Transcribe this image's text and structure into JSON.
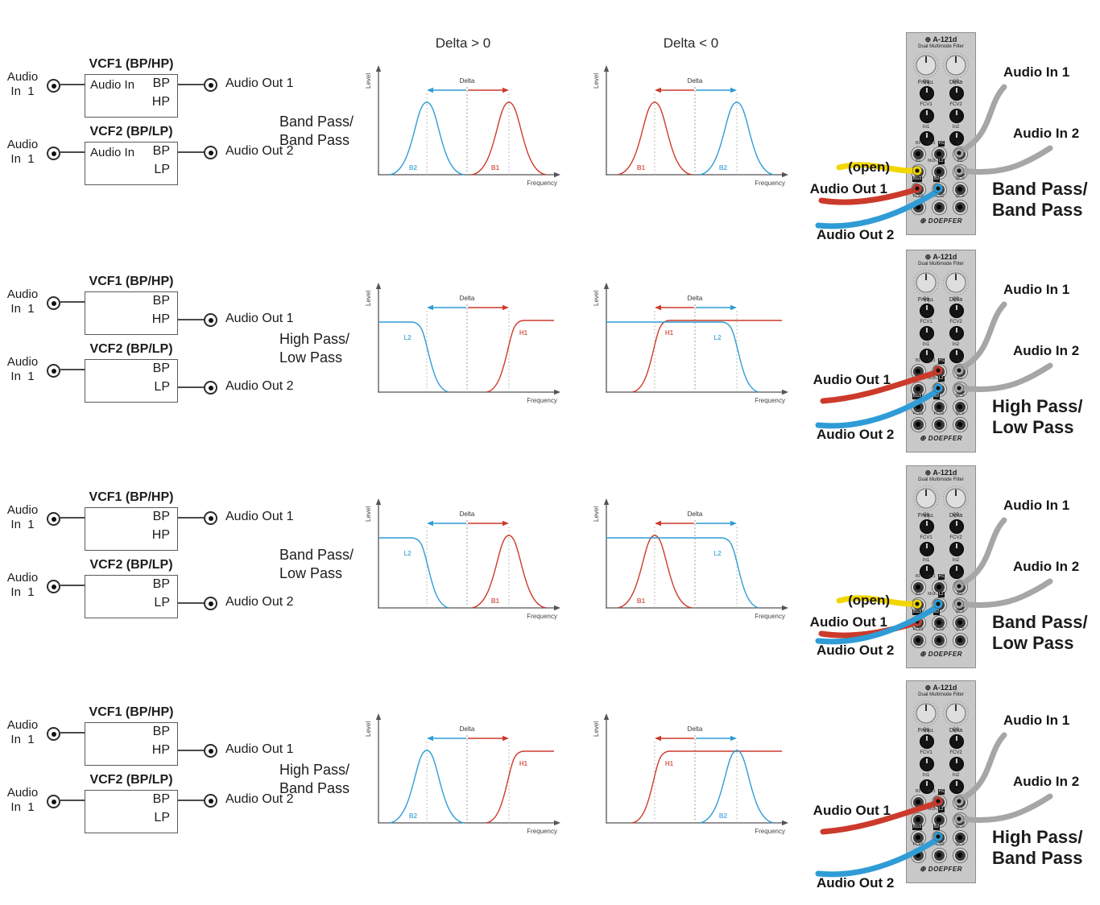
{
  "titles": {
    "delta_pos": "Delta > 0",
    "delta_neg": "Delta < 0"
  },
  "graph_labels": {
    "ylabel": "Level",
    "xlabel": "Frequency",
    "delta": "Delta"
  },
  "colors": {
    "red": "#cc3a2b",
    "blue": "#2f9cd6",
    "yellow": "#f2d600",
    "gray": "#a6a6a6",
    "axis": "#555555",
    "dotted": "#9a9a9a",
    "guide": "#b9b9b9"
  },
  "module": {
    "model": "A-121d",
    "title": "Dual Multimode Filter",
    "brand": "DOEPFER",
    "logo_glyph": "⊕",
    "knob1": "Frequ.",
    "knob2": "Delta",
    "small_knobs": [
      "Q1",
      "Q2",
      "FCV1",
      "FCV2",
      "In1",
      "In2"
    ],
    "jacks": [
      [
        {
          "label": "B1"
        },
        {
          "label": "Mx1",
          "badge": "H1"
        },
        {
          "label": "In1"
        }
      ],
      [
        {
          "label": "B2"
        },
        {
          "label": "Mx2",
          "badge": "L2"
        },
        {
          "label": "In2"
        }
      ],
      [
        {
          "badge": "B1/2"
        },
        {
          "badge": "B2"
        },
        {
          "label": "QCV"
        }
      ],
      [
        {
          "label": "FCV1"
        },
        {
          "label": "FCV2"
        },
        {
          "label": "QCV"
        }
      ]
    ]
  },
  "rows": [
    {
      "diagram": {
        "in1_line1": "Audio",
        "in1_line2": "In  1",
        "in2_line1": "Audio",
        "in2_line2": "In  1",
        "vcf1": {
          "title": "VCF1 (BP/HP)",
          "audio_in": "Audio In",
          "f1": "BP",
          "f2": "HP",
          "out_from": "top",
          "out": "Audio Out 1"
        },
        "vcf2": {
          "title": "VCF2 (BP/LP)",
          "audio_in": "Audio In",
          "f1": "BP",
          "f2": "LP",
          "out_from": "top",
          "out": "Audio Out 2"
        },
        "mode1": "Band Pass/",
        "mode2": "Band Pass"
      },
      "graphs": [
        {
          "curves": [
            {
              "shape": "bandpass",
              "side": "left",
              "color": "blue",
              "label": "B2"
            },
            {
              "shape": "bandpass",
              "side": "right",
              "color": "red",
              "label": "B1"
            }
          ]
        },
        {
          "curves": [
            {
              "shape": "bandpass",
              "side": "left",
              "color": "red",
              "label": "B1"
            },
            {
              "shape": "bandpass",
              "side": "right",
              "color": "blue",
              "label": "B2"
            }
          ]
        }
      ],
      "patch": {
        "mode1": "Band Pass/",
        "mode2": "Band Pass",
        "cables": [
          {
            "color": "yellow",
            "label": "(open)",
            "col": 0,
            "row": 1
          },
          {
            "color": "red",
            "label": "Audio Out 1",
            "col": 0,
            "row": 2
          },
          {
            "color": "blue",
            "label": "Audio Out 2",
            "col": 1,
            "row": 2
          },
          {
            "color": "gray",
            "label": "Audio In 1",
            "col": 2,
            "row": 0
          },
          {
            "color": "gray",
            "label": "Audio In 2",
            "col": 2,
            "row": 1
          }
        ]
      }
    },
    {
      "diagram": {
        "in1_line1": "Audio",
        "in1_line2": "In  1",
        "in2_line1": "Audio",
        "in2_line2": "In  1",
        "vcf1": {
          "title": "VCF1 (BP/HP)",
          "audio_in": "",
          "f1": "BP",
          "f2": "HP",
          "out_from": "bottom",
          "out": "Audio Out 1"
        },
        "vcf2": {
          "title": "VCF2 (BP/LP)",
          "audio_in": "",
          "f1": "BP",
          "f2": "LP",
          "out_from": "bottom",
          "out": "Audio Out 2"
        },
        "mode1": "High Pass/",
        "mode2": "Low Pass"
      },
      "graphs": [
        {
          "curves": [
            {
              "shape": "lowpass",
              "side": "left",
              "color": "blue",
              "label": "L2"
            },
            {
              "shape": "highpass",
              "side": "right",
              "color": "red",
              "label": "H1"
            }
          ]
        },
        {
          "curves": [
            {
              "shape": "highpass",
              "side": "left",
              "color": "red",
              "label": "H1"
            },
            {
              "shape": "lowpass",
              "side": "right",
              "color": "blue",
              "label": "L2"
            }
          ]
        }
      ],
      "patch": {
        "mode1": "High Pass/",
        "mode2": "Low Pass",
        "cables": [
          {
            "color": "red",
            "label": "Audio Out 1",
            "col": 1,
            "row": 0
          },
          {
            "color": "blue",
            "label": "Audio Out 2",
            "col": 1,
            "row": 1
          },
          {
            "color": "gray",
            "label": "Audio In 1",
            "col": 2,
            "row": 0
          },
          {
            "color": "gray",
            "label": "Audio In 2",
            "col": 2,
            "row": 1
          }
        ]
      }
    },
    {
      "diagram": {
        "in1_line1": "Audio",
        "in1_line2": "In  1",
        "in2_line1": "Audio",
        "in2_line2": "In  1",
        "vcf1": {
          "title": "VCF1 (BP/HP)",
          "audio_in": "",
          "f1": "BP",
          "f2": "HP",
          "out_from": "top",
          "out": "Audio Out 1"
        },
        "vcf2": {
          "title": "VCF2 (BP/LP)",
          "audio_in": "",
          "f1": "BP",
          "f2": "LP",
          "out_from": "bottom",
          "out": "Audio Out 2"
        },
        "mode1": "Band Pass/",
        "mode2": "Low Pass"
      },
      "graphs": [
        {
          "curves": [
            {
              "shape": "lowpass",
              "side": "left",
              "color": "blue",
              "label": "L2"
            },
            {
              "shape": "bandpass",
              "side": "right",
              "color": "red",
              "label": "B1"
            }
          ]
        },
        {
          "curves": [
            {
              "shape": "bandpass",
              "side": "left",
              "color": "red",
              "label": "B1"
            },
            {
              "shape": "lowpass",
              "side": "right",
              "color": "blue",
              "label": "L2"
            }
          ]
        }
      ],
      "patch": {
        "mode1": "Band Pass/",
        "mode2": "Low Pass",
        "cables": [
          {
            "color": "yellow",
            "label": "(open)",
            "col": 0,
            "row": 1
          },
          {
            "color": "red",
            "label": "Audio Out 1",
            "col": 0,
            "row": 2
          },
          {
            "color": "blue",
            "label": "Audio Out 2",
            "col": 1,
            "row": 1
          },
          {
            "color": "gray",
            "label": "Audio In 1",
            "col": 2,
            "row": 0
          },
          {
            "color": "gray",
            "label": "Audio In 2",
            "col": 2,
            "row": 1
          }
        ]
      }
    },
    {
      "diagram": {
        "in1_line1": "Audio",
        "in1_line2": "In  1",
        "in2_line1": "Audio",
        "in2_line2": "In  1",
        "vcf1": {
          "title": "VCF1 (BP/HP)",
          "audio_in": "",
          "f1": "BP",
          "f2": "HP",
          "out_from": "bottom",
          "out": "Audio Out 1"
        },
        "vcf2": {
          "title": "VCF2 (BP/LP)",
          "audio_in": "",
          "f1": "BP",
          "f2": "LP",
          "out_from": "top",
          "out": "Audio Out 2"
        },
        "mode1": "High Pass/",
        "mode2": "Band Pass"
      },
      "graphs": [
        {
          "curves": [
            {
              "shape": "bandpass",
              "side": "left",
              "color": "blue",
              "label": "B2"
            },
            {
              "shape": "highpass",
              "side": "right",
              "color": "red",
              "label": "H1"
            }
          ]
        },
        {
          "curves": [
            {
              "shape": "highpass",
              "side": "left",
              "color": "red",
              "label": "H1"
            },
            {
              "shape": "bandpass",
              "side": "right",
              "color": "blue",
              "label": "B2"
            }
          ]
        }
      ],
      "patch": {
        "mode1": "High Pass/",
        "mode2": "Band Pass",
        "cables": [
          {
            "color": "red",
            "label": "Audio Out 1",
            "col": 1,
            "row": 0
          },
          {
            "color": "blue",
            "label": "Audio Out 2",
            "col": 1,
            "row": 2
          },
          {
            "color": "gray",
            "label": "Audio In 1",
            "col": 2,
            "row": 0
          },
          {
            "color": "gray",
            "label": "Audio In 2",
            "col": 2,
            "row": 1
          }
        ]
      }
    }
  ]
}
